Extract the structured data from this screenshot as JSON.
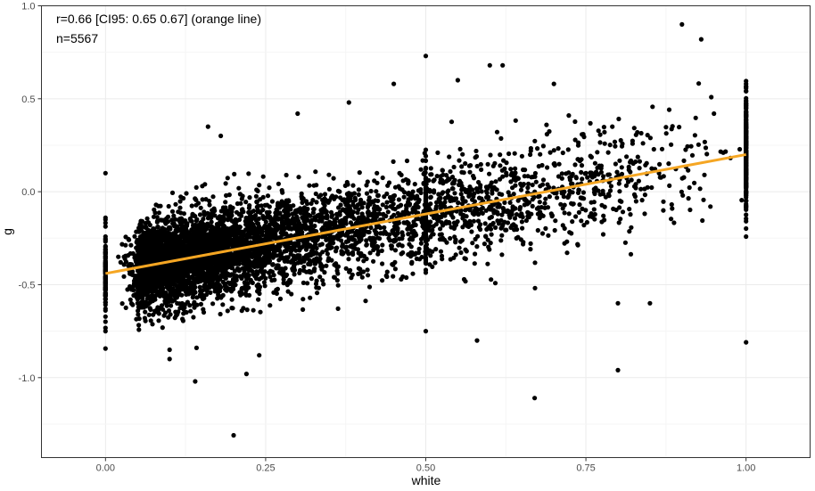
{
  "chart_data": {
    "type": "scatter",
    "xlabel": "white",
    "ylabel": "g",
    "xlim": [
      -0.1,
      1.1
    ],
    "ylim": [
      -1.43,
      1.0
    ],
    "xticks": [
      0.0,
      0.25,
      0.5,
      0.75,
      1.0
    ],
    "xtick_labels": [
      "0.00",
      "0.25",
      "0.50",
      "0.75",
      "1.00"
    ],
    "yticks": [
      -1.0,
      -0.5,
      0.0,
      0.5,
      1.0
    ],
    "ytick_labels": [
      "-1.0",
      "-0.5",
      "0.0",
      "0.5",
      "1.0"
    ],
    "grid": true,
    "annotations": [
      "r=0.66 [CI95: 0.65 0.67] (orange line)",
      "n=5567"
    ],
    "fit_line": {
      "x": [
        0.0,
        1.0
      ],
      "y": [
        -0.44,
        0.2
      ],
      "color": "#f5a623"
    },
    "point_color": "#000000",
    "n_points": 5567,
    "points_sample": [
      [
        0.0,
        0.1
      ],
      [
        0.0,
        -0.15
      ],
      [
        0.0,
        -0.5
      ],
      [
        0.0,
        -0.75
      ],
      [
        0.02,
        -0.35
      ],
      [
        0.05,
        -0.6
      ],
      [
        0.08,
        -0.4
      ],
      [
        0.1,
        -0.45
      ],
      [
        0.12,
        -0.3
      ],
      [
        0.13,
        -0.55
      ],
      [
        0.1,
        -0.85
      ],
      [
        0.1,
        -0.9
      ],
      [
        0.14,
        -1.02
      ],
      [
        0.2,
        -1.31
      ],
      [
        0.22,
        -0.98
      ],
      [
        0.24,
        -0.88
      ],
      [
        0.16,
        0.35
      ],
      [
        0.18,
        0.3
      ],
      [
        0.3,
        0.42
      ],
      [
        0.35,
        -0.2
      ],
      [
        0.38,
        0.48
      ],
      [
        0.45,
        0.58
      ],
      [
        0.5,
        0.73
      ],
      [
        0.5,
        -0.75
      ],
      [
        0.55,
        0.6
      ],
      [
        0.6,
        0.68
      ],
      [
        0.62,
        0.68
      ],
      [
        0.58,
        -0.8
      ],
      [
        0.67,
        -1.11
      ],
      [
        0.7,
        0.58
      ],
      [
        0.8,
        -0.96
      ],
      [
        0.8,
        -0.6
      ],
      [
        0.85,
        -0.6
      ],
      [
        0.9,
        0.9
      ],
      [
        0.93,
        0.82
      ],
      [
        0.95,
        0.42
      ],
      [
        1.0,
        0.58
      ],
      [
        1.0,
        -0.81
      ],
      [
        1.0,
        0.2
      ],
      [
        0.75,
        0.1
      ]
    ]
  }
}
